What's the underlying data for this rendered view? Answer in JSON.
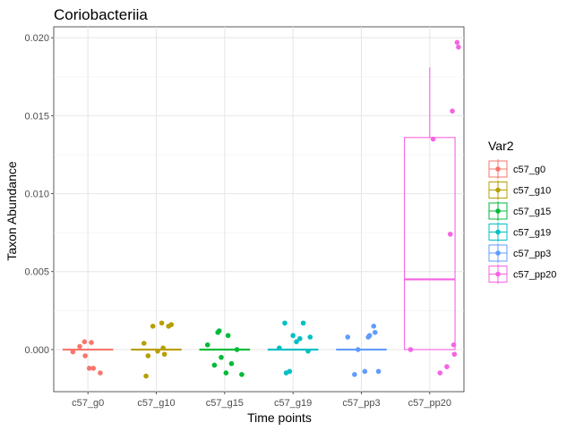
{
  "chart_data": {
    "type": "box",
    "title": "Coriobacteriia",
    "xlabel": "Time points",
    "ylabel": "Taxon Abundance",
    "categories": [
      "c57_g0",
      "c57_g10",
      "c57_g15",
      "c57_g19",
      "c57_pp3",
      "c57_pp20"
    ],
    "ylim": [
      -0.0027,
      0.0207
    ],
    "yticks": [
      0.0,
      0.005,
      0.01,
      0.015,
      0.02
    ],
    "ytick_labels": [
      "0.000",
      "0.005",
      "0.010",
      "0.015",
      "0.020"
    ],
    "grid": true,
    "legend": {
      "title": "Var2",
      "position": "right",
      "entries": [
        "c57_g0",
        "c57_g10",
        "c57_g15",
        "c57_g19",
        "c57_pp3",
        "c57_pp20"
      ]
    },
    "colors": [
      "#F8766D",
      "#B79F00",
      "#00BA38",
      "#00BFC4",
      "#619CFF",
      "#F564E3"
    ],
    "series": [
      {
        "name": "c57_g0",
        "box": {
          "q1": 0.0,
          "median": 0.0,
          "q3": 0.0,
          "whisker_low": 0.0,
          "whisker_high": 0.0
        },
        "points": [
          [
            -0.22,
            -0.00015
          ],
          [
            -0.12,
            0.0002
          ],
          [
            -0.05,
            0.0005
          ],
          [
            0.05,
            0.00045
          ],
          [
            0.18,
            -0.0015
          ],
          [
            -0.04,
            -0.0004
          ],
          [
            0.02,
            -0.0012
          ],
          [
            0.08,
            -0.0012
          ]
        ]
      },
      {
        "name": "c57_g10",
        "box": {
          "q1": 0.0,
          "median": 0.0,
          "q3": 0.0,
          "whisker_low": 0.0,
          "whisker_high": 0.0
        },
        "points": [
          [
            -0.18,
            0.0004
          ],
          [
            -0.15,
            -0.0017
          ],
          [
            -0.12,
            -0.0004
          ],
          [
            -0.05,
            0.0015
          ],
          [
            0.02,
            -0.0001
          ],
          [
            0.08,
            0.0017
          ],
          [
            0.12,
            -0.0003
          ],
          [
            0.18,
            0.0015
          ],
          [
            0.22,
            0.0016
          ],
          [
            0.1,
            0.0001
          ]
        ]
      },
      {
        "name": "c57_g15",
        "box": {
          "q1": 0.0,
          "median": 0.0,
          "q3": 0.0,
          "whisker_low": 0.0,
          "whisker_high": 0.0
        },
        "points": [
          [
            -0.25,
            0.0003
          ],
          [
            -0.1,
            0.0011
          ],
          [
            -0.08,
            0.0012
          ],
          [
            -0.05,
            -0.0005
          ],
          [
            0.02,
            -0.0015
          ],
          [
            0.05,
            0.0009
          ],
          [
            0.1,
            -0.0009
          ],
          [
            0.18,
            0.0
          ],
          [
            0.25,
            -0.0016
          ],
          [
            -0.15,
            -0.001
          ]
        ]
      },
      {
        "name": "c57_g19",
        "box": {
          "q1": 0.0,
          "median": 0.0,
          "q3": 0.0,
          "whisker_low": 0.0,
          "whisker_high": 0.0
        },
        "points": [
          [
            -0.2,
            0.0001
          ],
          [
            -0.12,
            0.0017
          ],
          [
            -0.1,
            -0.0015
          ],
          [
            -0.05,
            -0.0014
          ],
          [
            0.0,
            0.0009
          ],
          [
            0.05,
            0.0005
          ],
          [
            0.1,
            0.0007
          ],
          [
            0.15,
            0.0017
          ],
          [
            0.22,
            -0.0001
          ],
          [
            0.25,
            0.0008
          ]
        ]
      },
      {
        "name": "c57_pp3",
        "box": {
          "q1": 0.0,
          "median": 0.0,
          "q3": 0.0,
          "whisker_low": 0.0,
          "whisker_high": 0.0
        },
        "points": [
          [
            -0.2,
            0.0008
          ],
          [
            -0.1,
            -0.0016
          ],
          [
            -0.05,
            0.0
          ],
          [
            0.05,
            -0.0014
          ],
          [
            0.1,
            0.0008
          ],
          [
            0.12,
            0.0009
          ],
          [
            0.18,
            0.0015
          ],
          [
            0.2,
            0.0011
          ],
          [
            0.25,
            -0.0014
          ]
        ]
      },
      {
        "name": "c57_pp20",
        "box": {
          "q1": 0.0,
          "median": 0.0045,
          "q3": 0.0136,
          "whisker_low": 0.0,
          "whisker_high": 0.0181
        },
        "points": [
          [
            -0.28,
            0.0
          ],
          [
            0.05,
            0.0135
          ],
          [
            0.15,
            -0.0015
          ],
          [
            0.25,
            -0.0011
          ],
          [
            0.3,
            0.0074
          ],
          [
            0.33,
            0.0153
          ],
          [
            0.35,
            0.0003
          ],
          [
            0.36,
            -0.0003
          ],
          [
            0.4,
            0.0197
          ],
          [
            0.42,
            0.0194
          ]
        ]
      }
    ]
  }
}
